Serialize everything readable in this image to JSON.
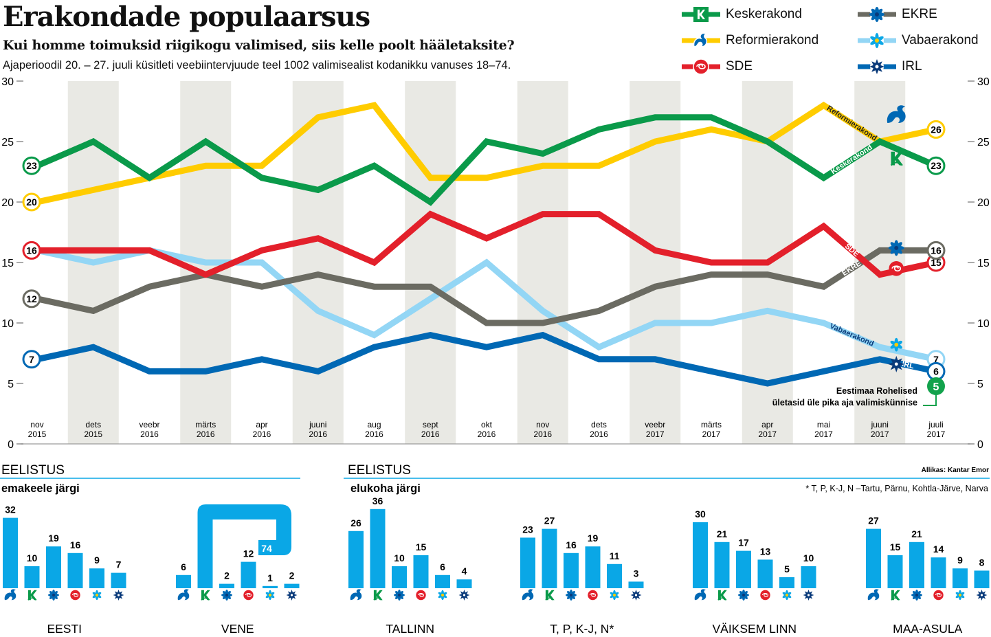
{
  "header": {
    "title": "Erakondade populaarsus",
    "subtitle": "Kui homme toimuksid riigikogu valimised, siis kelle poolt hääletaksite?",
    "note": "Ajaperioodil 20. – 27. juuli küsitleti veebiintervjuude teel 1002 valimisealist kodanikku vanuses 18–74."
  },
  "colors": {
    "Keskerakond": "#0a9a4a",
    "Reformierakond": "#ffcc00",
    "SDE": "#e3202b",
    "EKRE": "#6b6b62",
    "Vabaerakond": "#93d6f5",
    "IRL": "#0068b4",
    "bar": "#0aa7e6",
    "rohelised": "#12a24c"
  },
  "legend": [
    {
      "party": "Keskerakond",
      "icon": "keskerakond-logo-icon"
    },
    {
      "party": "EKRE",
      "icon": "cornflower-icon"
    },
    {
      "party": "Reformierakond",
      "icon": "squirrel-icon"
    },
    {
      "party": "Vabaerakond",
      "icon": "vabaerakond-flower-icon"
    },
    {
      "party": "SDE",
      "icon": "rose-icon"
    },
    {
      "party": "IRL",
      "icon": "cross-star-icon"
    }
  ],
  "chart_data": [
    {
      "type": "line",
      "title": "Erakondade populaarsus",
      "categories": [
        "nov 2015",
        "dets 2015",
        "veebr 2016",
        "märts 2016",
        "apr 2016",
        "juuni 2016",
        "aug 2016",
        "sept 2016",
        "okt 2016",
        "nov 2016",
        "dets 2016",
        "veebr 2017",
        "märts 2017",
        "apr 2017",
        "mai 2017",
        "juuni 2017",
        "juuli 2017"
      ],
      "ylim": [
        0,
        30
      ],
      "yticks": [
        0,
        5,
        10,
        15,
        20,
        25,
        30
      ],
      "series": [
        {
          "name": "Keskerakond",
          "values": [
            23,
            25,
            22,
            25,
            22,
            21,
            23,
            20,
            25,
            24,
            26,
            27,
            27,
            25,
            22,
            25,
            23
          ],
          "start_label": "23",
          "end_label": "23"
        },
        {
          "name": "Reformierakond",
          "values": [
            20,
            21,
            22,
            23,
            23,
            27,
            28,
            22,
            22,
            23,
            23,
            25,
            26,
            25,
            28,
            25,
            26
          ],
          "start_label": "20",
          "end_label": "26"
        },
        {
          "name": "SDE",
          "values": [
            16,
            16,
            16,
            14,
            16,
            17,
            15,
            19,
            17,
            19,
            19,
            16,
            15,
            15,
            18,
            14,
            15
          ],
          "start_label": "16",
          "end_label": "15"
        },
        {
          "name": "EKRE",
          "values": [
            12,
            11,
            13,
            14,
            13,
            14,
            13,
            13,
            10,
            10,
            11,
            13,
            14,
            14,
            13,
            16,
            16
          ],
          "start_label": "12",
          "end_label": "16"
        },
        {
          "name": "Vabaerakond",
          "values": [
            16,
            15,
            16,
            15,
            15,
            11,
            9,
            12,
            15,
            11,
            8,
            10,
            10,
            11,
            10,
            8,
            7
          ],
          "start_label": "",
          "end_label": "7"
        },
        {
          "name": "IRL",
          "values": [
            7,
            8,
            6,
            6,
            7,
            6,
            8,
            9,
            8,
            9,
            7,
            7,
            6,
            5,
            6,
            7,
            6
          ],
          "start_label": "7",
          "end_label": "6"
        }
      ],
      "inline_labels": [
        "Reformierakond",
        "Keskerakond",
        "SDE",
        "EKRE",
        "Vabaerakond",
        "IRL"
      ],
      "annotation": {
        "value": "5",
        "text": [
          "Eestimaa Rohelised",
          "ületasid üle pika aja valimiskünnise"
        ]
      }
    },
    {
      "type": "bar",
      "section": "EELISTUS",
      "subtitle": "emakeele järgi",
      "party_order": [
        "Reformierakond",
        "Keskerakond",
        "EKRE",
        "SDE",
        "Vabaerakond",
        "IRL"
      ],
      "groups": [
        {
          "name": "EESTI",
          "values": [
            32,
            10,
            19,
            16,
            9,
            7
          ]
        },
        {
          "name": "VENE",
          "values": [
            6,
            74,
            2,
            12,
            1,
            2
          ]
        }
      ]
    },
    {
      "type": "bar",
      "section": "EELISTUS",
      "subtitle": "elukoha järgi",
      "source": "Allikas: Kantar Emor",
      "footnote": "* T, P, K-J, N –Tartu, Pärnu, Kohtla-Järve, Narva",
      "party_order": [
        "Reformierakond",
        "Keskerakond",
        "EKRE",
        "SDE",
        "Vabaerakond",
        "IRL"
      ],
      "groups": [
        {
          "name": "TALLINN",
          "values": [
            26,
            36,
            10,
            15,
            6,
            4
          ]
        },
        {
          "name": "T, P, K-J, N*",
          "values": [
            23,
            27,
            16,
            19,
            11,
            3
          ]
        },
        {
          "name": "VÄIKSEM LINN",
          "values": [
            30,
            21,
            17,
            13,
            5,
            10
          ]
        },
        {
          "name": "MAA-ASULA",
          "values": [
            27,
            15,
            21,
            14,
            9,
            8
          ]
        }
      ]
    }
  ]
}
